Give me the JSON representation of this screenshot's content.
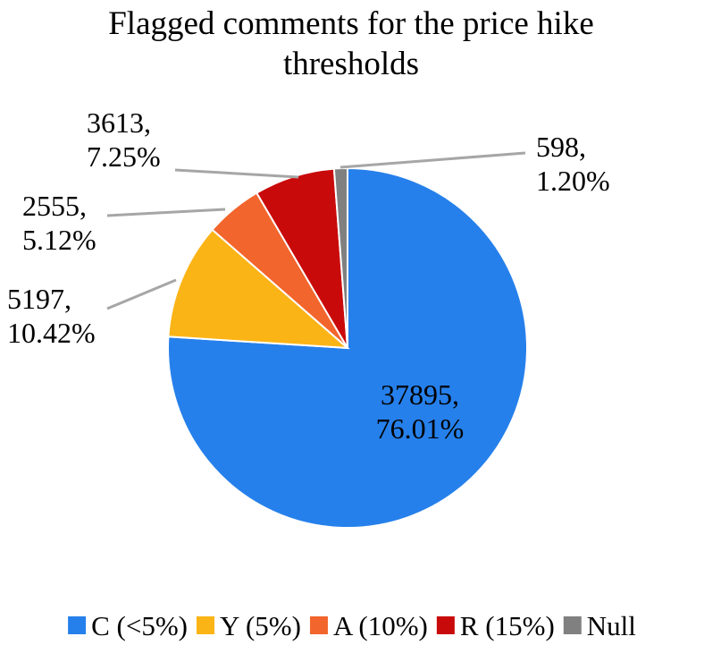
{
  "chart_data": {
    "type": "pie",
    "title": "Flagged comments for the price hike thresholds",
    "title_lines": [
      "Flagged comments for the price hike",
      "thresholds"
    ],
    "slices": [
      {
        "name": "C (<5%)",
        "value": 37895,
        "percent": "76.01%",
        "color": "#2680eb"
      },
      {
        "name": "Y (5%)",
        "value": 5197,
        "percent": "10.42%",
        "color": "#fbb416"
      },
      {
        "name": "A (10%)",
        "value": 2555,
        "percent": "5.12%",
        "color": "#f2652c"
      },
      {
        "name": "R (15%)",
        "value": 3613,
        "percent": "7.25%",
        "color": "#c90a0a"
      },
      {
        "name": "Null",
        "value": 598,
        "percent": "1.20%",
        "color": "#808080"
      }
    ],
    "legend_position": "bottom",
    "leader_line_color": "#a6a6a6"
  }
}
